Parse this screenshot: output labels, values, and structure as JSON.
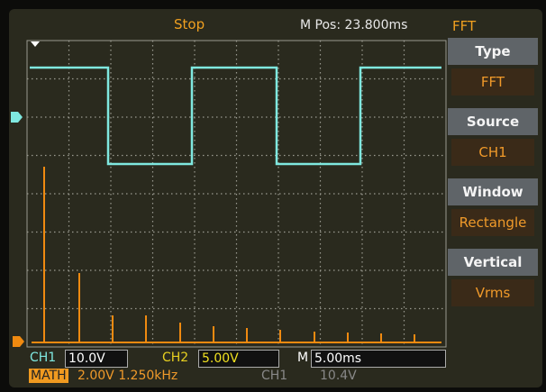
{
  "header": {
    "status": "Stop",
    "position": "M Pos: 23.800ms",
    "mode": "FFT"
  },
  "menu": [
    {
      "label": "Type",
      "value": "FFT"
    },
    {
      "label": "Source",
      "value": "CH1"
    },
    {
      "label": "Window",
      "value": "Rectangle"
    },
    {
      "label": "Vertical",
      "value": "Vrms"
    }
  ],
  "status_bar": {
    "ch1_label": "CH1",
    "ch1_scale": "10.0V",
    "ch2_label": "CH2",
    "ch2_scale": "5.00V",
    "time_label": "M",
    "time_scale": "5.00ms",
    "math_label": "MATH",
    "math_scale": "2.00V 1.250kHz",
    "trigger_source": "CH1",
    "trigger_level": "10.4V"
  }
}
